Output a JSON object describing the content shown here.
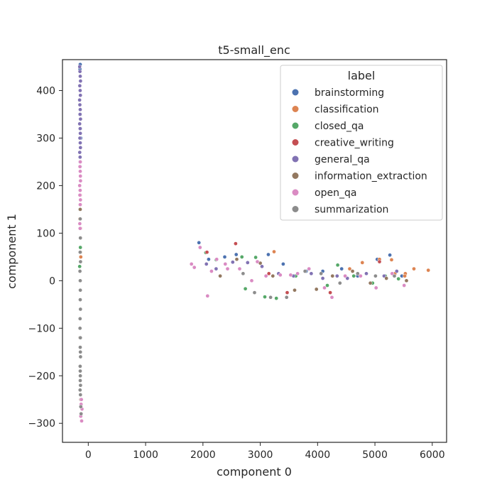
{
  "chart_data": {
    "type": "scatter",
    "title": "t5-small_enc",
    "xlabel": "component 0",
    "ylabel": "component 1",
    "xlim": [
      -450,
      6250
    ],
    "ylim": [
      -340,
      465
    ],
    "xticks": [
      0,
      1000,
      2000,
      3000,
      4000,
      5000,
      6000
    ],
    "yticks": [
      -300,
      -200,
      -100,
      0,
      100,
      200,
      300,
      400
    ],
    "xtick_labels": [
      "0",
      "1000",
      "2000",
      "3000",
      "4000",
      "5000",
      "6000"
    ],
    "ytick_labels": [
      "−300",
      "−200",
      "−100",
      "0",
      "100",
      "200",
      "300",
      "400"
    ],
    "grid": false,
    "legend": {
      "title": "label",
      "position": "top-right"
    },
    "series": [
      {
        "name": "brainstorming",
        "color": "#4c72b0",
        "x": [
          1930,
          2100,
          2380,
          2580,
          3140,
          3400,
          3800,
          4090,
          4420,
          4700,
          5040,
          5260,
          5470,
          -140,
          -150,
          -130,
          -145,
          -135,
          -140,
          -150,
          -138
        ],
        "y": [
          80,
          45,
          50,
          55,
          55,
          35,
          20,
          20,
          25,
          10,
          45,
          54,
          10,
          455,
          380,
          300,
          445,
          320,
          260,
          410,
          350
        ]
      },
      {
        "name": "classification",
        "color": "#dd8452",
        "x": [
          3240,
          4560,
          4780,
          5080,
          5290,
          5530,
          5680,
          5930,
          5520,
          5350,
          -140,
          -135,
          -148,
          -130
        ],
        "y": [
          61,
          25,
          38,
          45,
          44,
          15,
          25,
          22,
          10,
          15,
          160,
          90,
          130,
          50
        ]
      },
      {
        "name": "closed_qa",
        "color": "#55a868",
        "x": [
          2050,
          2230,
          2680,
          2740,
          2920,
          3080,
          3280,
          3620,
          4170,
          4350,
          4630,
          4960,
          5180,
          5410,
          -145,
          -138,
          -150
        ],
        "y": [
          59,
          44,
          50,
          -17,
          49,
          -34,
          -37,
          10,
          -10,
          33,
          10,
          -5,
          10,
          4,
          150,
          70,
          30
        ]
      },
      {
        "name": "creative_writing",
        "color": "#c44e52",
        "x": [
          2070,
          2570,
          3150,
          3470,
          4220,
          5080,
          -140,
          -135
        ],
        "y": [
          60,
          78,
          15,
          -25,
          -25,
          40,
          180,
          110
        ]
      },
      {
        "name": "general_qa",
        "color": "#8172b3",
        "x": [
          2060,
          2230,
          2520,
          2780,
          3030,
          3320,
          3580,
          3890,
          4090,
          4340,
          4520,
          4850,
          5160,
          5380,
          -150,
          -145,
          -140,
          -135,
          -148,
          -142,
          -138,
          -152,
          -146,
          -140,
          -144,
          -136,
          -150,
          -142,
          -139,
          -147,
          -141,
          -137,
          -149,
          -143,
          -145,
          -140
        ],
        "y": [
          35,
          25,
          39,
          38,
          30,
          15,
          10,
          15,
          5,
          10,
          5,
          15,
          10,
          20,
          450,
          440,
          430,
          420,
          410,
          400,
          390,
          380,
          370,
          360,
          350,
          340,
          330,
          320,
          310,
          300,
          290,
          280,
          270,
          260,
          250,
          240
        ]
      },
      {
        "name": "information_extraction",
        "color": "#937860",
        "x": [
          2300,
          2590,
          3000,
          3220,
          3600,
          3980,
          4260,
          4610,
          4920,
          5200,
          5550,
          -140,
          -135,
          -145,
          -130
        ],
        "y": [
          10,
          45,
          37,
          10,
          -20,
          -18,
          10,
          20,
          -5,
          5,
          0,
          150,
          60,
          -120,
          -250
        ]
      },
      {
        "name": "open_qa",
        "color": "#da8bc3",
        "x": [
          1800,
          1850,
          1950,
          2080,
          2150,
          2240,
          2390,
          2430,
          2640,
          2850,
          2950,
          3100,
          3350,
          3530,
          3650,
          3850,
          4120,
          4250,
          4480,
          4750,
          5020,
          5300,
          5510,
          -145,
          -140,
          -138,
          -135,
          -150,
          -142,
          -146,
          -137,
          -141,
          -148,
          -143,
          -139,
          -120,
          -125,
          -110,
          -130,
          -115
        ],
        "y": [
          35,
          28,
          70,
          -32,
          20,
          45,
          35,
          25,
          25,
          0,
          40,
          10,
          12,
          12,
          15,
          25,
          -15,
          -35,
          10,
          10,
          -15,
          15,
          -10,
          240,
          230,
          220,
          210,
          200,
          190,
          180,
          170,
          160,
          120,
          110,
          250,
          -250,
          -260,
          -270,
          -285,
          -295
        ]
      },
      {
        "name": "summarization",
        "color": "#8c8c8c",
        "x": [
          2700,
          2900,
          3180,
          3460,
          3780,
          4060,
          4390,
          4700,
          5010,
          5340,
          -140,
          -138,
          -142,
          -136,
          -145,
          -140,
          -139,
          -141,
          -137,
          -143,
          -144,
          -138,
          -140,
          -136,
          -142,
          -139,
          -141,
          -135,
          -143,
          -137,
          -140,
          -138,
          -130,
          -125
        ],
        "y": [
          15,
          -25,
          -35,
          -35,
          20,
          15,
          -5,
          15,
          10,
          10,
          130,
          90,
          60,
          40,
          20,
          0,
          -20,
          -40,
          -60,
          -80,
          -100,
          -120,
          -140,
          -160,
          -180,
          -200,
          -210,
          -220,
          -230,
          -240,
          -190,
          -150,
          -265,
          -280
        ]
      }
    ]
  }
}
